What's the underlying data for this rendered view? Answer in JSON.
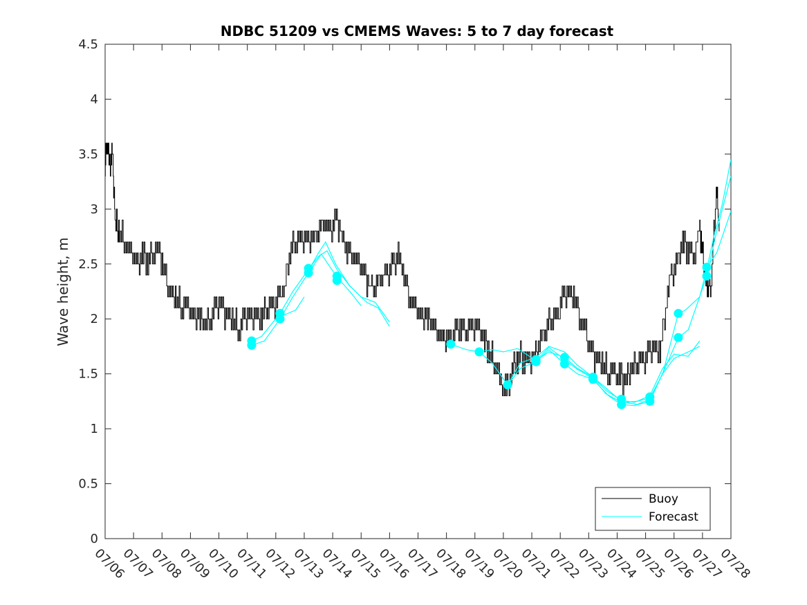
{
  "chart_data": {
    "type": "line",
    "title": "NDBC 51209 vs CMEMS Waves: 5 to 7 day forecast",
    "xlabel": "",
    "ylabel": "Wave height, m",
    "x_ticks": [
      "07/06",
      "07/07",
      "07/08",
      "07/09",
      "07/10",
      "07/11",
      "07/12",
      "07/13",
      "07/14",
      "07/15",
      "07/16",
      "07/17",
      "07/18",
      "07/19",
      "07/20",
      "07/21",
      "07/22",
      "07/23",
      "07/24",
      "07/25",
      "07/26",
      "07/27",
      "07/28"
    ],
    "xlim_days": [
      0,
      22
    ],
    "y_ticks": [
      "0",
      "0.5",
      "1",
      "1.5",
      "2",
      "2.5",
      "3",
      "3.5",
      "4",
      "4.5"
    ],
    "ylim": [
      0,
      4.5
    ],
    "grid": false,
    "legend": {
      "position": "bottom-right",
      "entries": [
        "Buoy",
        "Forecast"
      ]
    },
    "colors": {
      "buoy": "#000000",
      "forecast": "#00ffff"
    },
    "buoy": {
      "name": "Buoy",
      "points": [
        [
          0.0,
          3.4
        ],
        [
          0.05,
          3.6
        ],
        [
          0.15,
          3.4
        ],
        [
          0.25,
          3.5
        ],
        [
          0.35,
          2.9
        ],
        [
          0.5,
          2.8
        ],
        [
          0.7,
          2.7
        ],
        [
          0.9,
          2.6
        ],
        [
          1.1,
          2.5
        ],
        [
          1.3,
          2.6
        ],
        [
          1.5,
          2.5
        ],
        [
          1.7,
          2.6
        ],
        [
          1.9,
          2.6
        ],
        [
          2.1,
          2.4
        ],
        [
          2.3,
          2.2
        ],
        [
          2.5,
          2.2
        ],
        [
          2.7,
          2.1
        ],
        [
          2.9,
          2.1
        ],
        [
          3.1,
          2.0
        ],
        [
          3.3,
          2.0
        ],
        [
          3.5,
          1.95
        ],
        [
          3.7,
          2.0
        ],
        [
          3.9,
          2.1
        ],
        [
          4.1,
          2.1
        ],
        [
          4.3,
          2.0
        ],
        [
          4.5,
          2.0
        ],
        [
          4.7,
          1.9
        ],
        [
          4.9,
          2.0
        ],
        [
          5.1,
          2.0
        ],
        [
          5.3,
          2.0
        ],
        [
          5.5,
          2.0
        ],
        [
          5.7,
          2.1
        ],
        [
          5.9,
          2.1
        ],
        [
          6.1,
          2.2
        ],
        [
          6.3,
          2.3
        ],
        [
          6.5,
          2.6
        ],
        [
          6.7,
          2.7
        ],
        [
          6.9,
          2.7
        ],
        [
          7.1,
          2.7
        ],
        [
          7.3,
          2.7
        ],
        [
          7.5,
          2.8
        ],
        [
          7.7,
          2.9
        ],
        [
          7.9,
          2.8
        ],
        [
          8.1,
          2.9
        ],
        [
          8.3,
          2.8
        ],
        [
          8.5,
          2.6
        ],
        [
          8.7,
          2.6
        ],
        [
          8.9,
          2.5
        ],
        [
          9.1,
          2.4
        ],
        [
          9.3,
          2.3
        ],
        [
          9.5,
          2.3
        ],
        [
          9.7,
          2.4
        ],
        [
          9.9,
          2.4
        ],
        [
          10.1,
          2.5
        ],
        [
          10.3,
          2.6
        ],
        [
          10.5,
          2.4
        ],
        [
          10.7,
          2.2
        ],
        [
          10.9,
          2.1
        ],
        [
          11.1,
          2.0
        ],
        [
          11.3,
          2.0
        ],
        [
          11.5,
          1.95
        ],
        [
          11.7,
          1.9
        ],
        [
          11.9,
          1.8
        ],
        [
          12.1,
          1.8
        ],
        [
          12.3,
          1.9
        ],
        [
          12.5,
          1.9
        ],
        [
          12.7,
          1.9
        ],
        [
          12.9,
          1.9
        ],
        [
          13.1,
          1.9
        ],
        [
          13.3,
          1.8
        ],
        [
          13.5,
          1.7
        ],
        [
          13.7,
          1.6
        ],
        [
          13.9,
          1.4
        ],
        [
          14.1,
          1.35
        ],
        [
          14.3,
          1.5
        ],
        [
          14.5,
          1.65
        ],
        [
          14.7,
          1.65
        ],
        [
          14.9,
          1.6
        ],
        [
          15.1,
          1.65
        ],
        [
          15.3,
          1.8
        ],
        [
          15.5,
          1.9
        ],
        [
          15.7,
          2.0
        ],
        [
          15.9,
          2.0
        ],
        [
          16.1,
          2.2
        ],
        [
          16.3,
          2.2
        ],
        [
          16.5,
          2.2
        ],
        [
          16.7,
          2.0
        ],
        [
          16.9,
          1.85
        ],
        [
          17.1,
          1.7
        ],
        [
          17.3,
          1.6
        ],
        [
          17.5,
          1.6
        ],
        [
          17.7,
          1.5
        ],
        [
          17.9,
          1.5
        ],
        [
          18.1,
          1.45
        ],
        [
          18.3,
          1.45
        ],
        [
          18.5,
          1.55
        ],
        [
          18.7,
          1.6
        ],
        [
          18.9,
          1.6
        ],
        [
          19.1,
          1.7
        ],
        [
          19.3,
          1.7
        ],
        [
          19.5,
          1.7
        ],
        [
          19.7,
          2.1
        ],
        [
          19.9,
          2.4
        ],
        [
          20.1,
          2.5
        ],
        [
          20.3,
          2.7
        ],
        [
          20.5,
          2.6
        ],
        [
          20.7,
          2.6
        ],
        [
          20.9,
          2.8
        ],
        [
          21.0,
          2.6
        ],
        [
          21.1,
          2.4
        ],
        [
          21.2,
          2.3
        ],
        [
          21.3,
          2.3
        ],
        [
          21.4,
          2.8
        ],
        [
          21.5,
          3.1
        ],
        [
          21.6,
          2.8
        ]
      ]
    },
    "forecast_markers": [
      [
        5.15,
        1.8
      ],
      [
        5.15,
        1.76
      ],
      [
        6.15,
        2.05
      ],
      [
        6.15,
        2.0
      ],
      [
        7.15,
        2.46
      ],
      [
        7.15,
        2.42
      ],
      [
        8.15,
        2.39
      ],
      [
        8.15,
        2.35
      ],
      [
        12.15,
        1.77
      ],
      [
        13.15,
        1.7
      ],
      [
        14.15,
        1.4
      ],
      [
        15.15,
        1.63
      ],
      [
        15.15,
        1.61
      ],
      [
        16.15,
        1.65
      ],
      [
        16.15,
        1.59
      ],
      [
        17.15,
        1.47
      ],
      [
        17.15,
        1.45
      ],
      [
        18.15,
        1.27
      ],
      [
        18.15,
        1.22
      ],
      [
        19.15,
        1.29
      ],
      [
        19.15,
        1.25
      ],
      [
        20.15,
        2.05
      ],
      [
        20.15,
        1.83
      ],
      [
        21.15,
        2.47
      ],
      [
        21.15,
        2.39
      ]
    ],
    "forecast_lines": [
      [
        [
          5.15,
          1.8
        ],
        [
          5.5,
          1.84
        ],
        [
          6.15,
          2.05
        ],
        [
          6.6,
          2.25
        ],
        [
          7.15,
          2.45
        ],
        [
          7.5,
          2.57
        ],
        [
          7.8,
          2.62
        ],
        [
          8.15,
          2.45
        ],
        [
          8.6,
          2.3
        ],
        [
          9.0,
          2.2
        ],
        [
          9.5,
          2.15
        ],
        [
          10.0,
          1.97
        ]
      ],
      [
        [
          5.15,
          1.76
        ],
        [
          5.6,
          1.8
        ],
        [
          6.15,
          2.0
        ],
        [
          6.6,
          2.2
        ],
        [
          7.15,
          2.42
        ],
        [
          7.6,
          2.59
        ],
        [
          8.15,
          2.38
        ],
        [
          8.6,
          2.25
        ],
        [
          9.0,
          2.12
        ]
      ],
      [
        [
          6.15,
          2.02
        ],
        [
          6.7,
          2.08
        ],
        [
          7.0,
          2.2
        ]
      ],
      [
        [
          7.15,
          2.44
        ],
        [
          7.5,
          2.6
        ],
        [
          7.75,
          2.7
        ],
        [
          8.1,
          2.5
        ],
        [
          8.6,
          2.3
        ],
        [
          9.2,
          2.15
        ],
        [
          9.6,
          2.1
        ],
        [
          10.0,
          1.93
        ]
      ],
      [
        [
          12.15,
          1.77
        ],
        [
          12.7,
          1.72
        ],
        [
          13.15,
          1.7
        ],
        [
          13.6,
          1.72
        ],
        [
          14.0,
          1.7
        ],
        [
          14.5,
          1.73
        ],
        [
          15.15,
          1.62
        ],
        [
          15.6,
          1.7
        ],
        [
          16.15,
          1.65
        ],
        [
          16.6,
          1.55
        ],
        [
          17.15,
          1.47
        ],
        [
          17.7,
          1.35
        ],
        [
          18.15,
          1.25
        ],
        [
          18.7,
          1.22
        ],
        [
          19.15,
          1.27
        ],
        [
          19.6,
          1.5
        ],
        [
          20.15,
          2.05
        ],
        [
          20.4,
          2.08
        ],
        [
          20.9,
          2.2
        ],
        [
          21.15,
          2.45
        ],
        [
          21.4,
          2.75
        ],
        [
          21.7,
          3.05
        ],
        [
          22.0,
          3.45
        ]
      ],
      [
        [
          13.15,
          1.7
        ],
        [
          13.6,
          1.6
        ],
        [
          14.15,
          1.4
        ],
        [
          14.6,
          1.55
        ],
        [
          15.15,
          1.61
        ],
        [
          15.6,
          1.72
        ],
        [
          16.15,
          1.59
        ],
        [
          16.6,
          1.5
        ],
        [
          17.15,
          1.45
        ],
        [
          17.7,
          1.3
        ],
        [
          18.15,
          1.22
        ],
        [
          18.6,
          1.21
        ],
        [
          19.15,
          1.25
        ],
        [
          19.5,
          1.45
        ],
        [
          19.8,
          1.62
        ],
        [
          20.15,
          1.83
        ],
        [
          20.5,
          1.9
        ],
        [
          21.15,
          2.39
        ],
        [
          21.5,
          2.8
        ],
        [
          22.0,
          3.3
        ]
      ],
      [
        [
          14.15,
          1.4
        ],
        [
          14.6,
          1.6
        ],
        [
          15.15,
          1.65
        ],
        [
          15.6,
          1.75
        ],
        [
          16.15,
          1.7
        ],
        [
          16.6,
          1.58
        ],
        [
          17.15,
          1.47
        ],
        [
          17.6,
          1.35
        ],
        [
          18.15,
          1.26
        ],
        [
          18.6,
          1.24
        ],
        [
          19.15,
          1.3
        ],
        [
          19.6,
          1.55
        ],
        [
          20.0,
          1.68
        ],
        [
          20.5,
          1.66
        ],
        [
          20.9,
          1.8
        ]
      ],
      [
        [
          15.15,
          1.62
        ],
        [
          15.6,
          1.74
        ],
        [
          16.15,
          1.63
        ],
        [
          16.6,
          1.54
        ],
        [
          17.15,
          1.46
        ],
        [
          17.6,
          1.32
        ],
        [
          18.15,
          1.24
        ],
        [
          18.7,
          1.25
        ],
        [
          19.15,
          1.28
        ],
        [
          19.6,
          1.5
        ],
        [
          20.0,
          1.64
        ],
        [
          20.5,
          1.7
        ],
        [
          20.9,
          1.75
        ]
      ],
      [
        [
          21.15,
          2.47
        ],
        [
          21.5,
          2.6
        ],
        [
          22.0,
          2.98
        ]
      ]
    ]
  }
}
